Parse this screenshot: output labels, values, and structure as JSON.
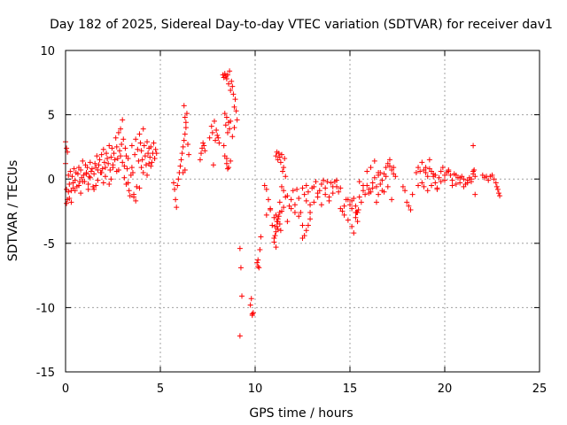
{
  "chart_data": {
    "type": "scatter",
    "title": "Day 182 of 2025, Sidereal Day-to-day VTEC variation (SDTVAR) for receiver dav1",
    "xlabel": "GPS time / hours",
    "ylabel": "SDTVAR / TECUs",
    "xlim": [
      0,
      25
    ],
    "ylim": [
      -15,
      10
    ],
    "xticks": [
      0,
      5,
      10,
      15,
      20,
      25
    ],
    "yticks": [
      -15,
      -10,
      -5,
      0,
      5,
      10
    ],
    "xtick_labels": [
      "0",
      "5",
      "10",
      "15",
      "20",
      "25"
    ],
    "ytick_labels": [
      "-15",
      "-10",
      "-5",
      "0",
      "5",
      "10"
    ],
    "grid": true,
    "marker": "+",
    "series_color": "#ff0000",
    "series": [
      {
        "name": "SDTVAR",
        "x": [
          0.0,
          0.05,
          0.1,
          0.15,
          0.2,
          0.25,
          0.3,
          0.35,
          0.4,
          0.45,
          0.5,
          0.55,
          0.6,
          0.65,
          0.7,
          0.75,
          0.8,
          0.85,
          0.9,
          0.95,
          1.0,
          1.05,
          1.1,
          1.15,
          1.2,
          1.25,
          1.3,
          1.35,
          1.4,
          1.45,
          1.5,
          1.55,
          1.6,
          1.65,
          1.7,
          1.75,
          1.8,
          1.85,
          1.9,
          1.95,
          2.0,
          2.05,
          2.1,
          2.15,
          2.2,
          2.25,
          2.3,
          2.35,
          2.4,
          2.45,
          2.5,
          2.55,
          2.6,
          2.65,
          2.7,
          2.75,
          2.8,
          2.85,
          2.9,
          2.95,
          3.0,
          3.05,
          3.1,
          3.15,
          3.2,
          3.25,
          3.3,
          3.35,
          3.4,
          3.45,
          3.5,
          3.55,
          3.6,
          3.65,
          3.7,
          3.75,
          3.8,
          3.85,
          3.9,
          3.95,
          4.0,
          4.05,
          4.1,
          4.15,
          4.2,
          4.25,
          4.3,
          4.35,
          4.4,
          4.45,
          4.5,
          4.55,
          4.6,
          4.65,
          4.7,
          4.75,
          4.8,
          0.0,
          0.05,
          0.1,
          0.2,
          0.3,
          0.5,
          0.7,
          0.9,
          1.1,
          1.3,
          1.5,
          1.7,
          1.9,
          2.1,
          2.3,
          2.5,
          2.7,
          2.9,
          3.1,
          3.3,
          3.5,
          3.7,
          3.9,
          4.1,
          4.3,
          4.5,
          4.7,
          0.05,
          0.15,
          0.4,
          0.8,
          1.2,
          1.6,
          2.0,
          2.4,
          2.8,
          3.0,
          3.2,
          3.6,
          4.0,
          4.4,
          5.7,
          5.75,
          5.8,
          5.85,
          5.9,
          5.95,
          6.0,
          6.05,
          6.1,
          6.15,
          6.2,
          6.25,
          6.3,
          6.35,
          6.4,
          6.45,
          6.5,
          6.25,
          6.3,
          6.35,
          6.2,
          6.3,
          7.1,
          7.15,
          7.2,
          7.25,
          7.3,
          7.35,
          7.6,
          7.7,
          7.75,
          7.8,
          7.85,
          7.9,
          7.95,
          8.0,
          8.05,
          8.1,
          8.3,
          8.35,
          8.4,
          8.45,
          8.5,
          8.55,
          8.6,
          8.65,
          8.7,
          8.75,
          8.8,
          8.85,
          8.9,
          8.95,
          9.0,
          9.05,
          8.4,
          8.45,
          8.5,
          8.55,
          8.6,
          8.65,
          8.7,
          8.8,
          8.9,
          8.35,
          8.4,
          8.5,
          8.6,
          8.7,
          8.5,
          8.55,
          9.2,
          9.25,
          9.3,
          9.2,
          9.75,
          9.8,
          9.85,
          9.9,
          9.85,
          10.1,
          10.15,
          10.2,
          10.25,
          10.3,
          10.15,
          10.5,
          10.6,
          10.7,
          10.8,
          10.9,
          11.0,
          11.05,
          11.1,
          11.15,
          11.2,
          11.3,
          11.4,
          11.5,
          11.6,
          11.7,
          11.8,
          11.9,
          12.0,
          12.1,
          12.2,
          12.3,
          12.4,
          12.5,
          12.6,
          12.7,
          12.8,
          12.9,
          13.0,
          13.1,
          13.2,
          13.3,
          13.4,
          13.5,
          13.6,
          13.7,
          13.8,
          13.9,
          14.0,
          14.1,
          14.2,
          14.3,
          14.4,
          14.5,
          14.6,
          14.7,
          14.8,
          14.9,
          15.0,
          15.1,
          15.2,
          15.3,
          15.4,
          15.5,
          15.6,
          15.7,
          15.8,
          15.9,
          16.0,
          16.1,
          16.2,
          16.3,
          16.4,
          16.5,
          16.6,
          16.7,
          16.8,
          16.9,
          17.0,
          17.1,
          17.2,
          17.3,
          17.4,
          10.6,
          10.8,
          11.0,
          11.1,
          11.2,
          11.3,
          11.5,
          11.7,
          11.9,
          12.1,
          12.3,
          12.5,
          12.7,
          12.9,
          13.1,
          13.3,
          13.5,
          13.7,
          13.9,
          14.1,
          14.3,
          14.5,
          14.7,
          14.9,
          15.1,
          15.3,
          15.5,
          15.7,
          15.9,
          16.1,
          16.3,
          16.5,
          16.7,
          16.9,
          17.1,
          17.3,
          11.1,
          11.15,
          11.2,
          11.25,
          11.3,
          11.35,
          11.4,
          11.45,
          11.5,
          11.55,
          11.6,
          11.0,
          11.05,
          11.1,
          11.15,
          11.2,
          11.25,
          11.3,
          11.35,
          11.4,
          12.5,
          12.6,
          12.7,
          12.8,
          12.9,
          15.1,
          15.2,
          15.3,
          15.35,
          15.4,
          15.45,
          16.0,
          16.2,
          16.4,
          16.5,
          16.6,
          16.8,
          17.0,
          17.2,
          17.8,
          17.9,
          18.0,
          18.1,
          18.2,
          18.3,
          18.5,
          18.6,
          18.7,
          18.8,
          18.9,
          19.0,
          19.1,
          19.2,
          19.3,
          19.4,
          19.5,
          19.6,
          19.7,
          19.8,
          19.9,
          20.0,
          20.1,
          20.2,
          20.3,
          20.4,
          20.5,
          20.6,
          20.7,
          20.8,
          20.9,
          21.0,
          21.1,
          21.2,
          21.3,
          21.4,
          21.5,
          21.55,
          21.6,
          18.6,
          18.8,
          19.0,
          19.2,
          19.4,
          19.6,
          19.8,
          20.0,
          20.2,
          20.4,
          20.6,
          20.8,
          21.0,
          21.2,
          21.4,
          18.9,
          19.1,
          19.3,
          19.5,
          21.5,
          21.5,
          21.6,
          22.0,
          22.1,
          22.2,
          22.3,
          22.4,
          22.5,
          22.6,
          22.7,
          22.75,
          22.8,
          22.85,
          22.9
        ],
        "y": [
          1.2,
          -0.8,
          -1.6,
          0.3,
          -0.4,
          0.6,
          -0.9,
          0.2,
          -0.3,
          0.8,
          -0.1,
          0.5,
          -0.6,
          0.4,
          0.9,
          -0.2,
          0.7,
          0.1,
          1.4,
          0.3,
          -0.2,
          1.1,
          0.5,
          0.9,
          -0.4,
          0.2,
          1.3,
          0.6,
          0.8,
          -0.6,
          0.4,
          1.2,
          0.9,
          1.8,
          0.7,
          1.1,
          1.5,
          0.5,
          1.9,
          0.8,
          2.3,
          1.3,
          0.9,
          2.0,
          1.6,
          1.2,
          2.6,
          0.7,
          1.7,
          2.4,
          1.1,
          2.0,
          1.5,
          3.2,
          2.5,
          1.6,
          3.6,
          2.2,
          3.9,
          2.7,
          4.6,
          3.1,
          1.0,
          2.4,
          -0.4,
          0.8,
          1.6,
          -0.9,
          -1.3,
          0.3,
          2.6,
          0.5,
          -1.2,
          1.9,
          3.1,
          -0.6,
          2.3,
          1.4,
          3.5,
          2.8,
          2.2,
          1.5,
          3.9,
          2.6,
          1.8,
          1.1,
          2.9,
          2.0,
          2.4,
          1.7,
          2.5,
          1.3,
          2.0,
          2.8,
          1.6,
          2.3,
          2.0,
          2.9,
          2.4,
          2.1,
          -1.5,
          -1.8,
          -0.9,
          -0.5,
          -0.2,
          0.4,
          0.1,
          -0.8,
          -0.1,
          0.5,
          0.2,
          -0.4,
          0.9,
          0.6,
          1.8,
          0.1,
          -0.3,
          0.9,
          -1.7,
          -0.7,
          0.5,
          0.3,
          1.0,
          1.6,
          -1.9,
          -1.0,
          -0.7,
          -1.1,
          -0.8,
          -0.5,
          -0.3,
          0.0,
          0.7,
          1.3,
          1.8,
          -1.4,
          0.9,
          1.2,
          -0.3,
          -0.8,
          -1.6,
          -2.2,
          -0.5,
          0.0,
          0.5,
          1.0,
          1.5,
          2.0,
          2.5,
          3.0,
          3.5,
          4.0,
          5.1,
          2.7,
          1.9,
          5.7,
          4.8,
          4.4,
          0.5,
          0.7,
          1.5,
          2.0,
          2.4,
          2.8,
          2.6,
          2.2,
          3.2,
          4.1,
          3.6,
          1.1,
          4.5,
          3.0,
          3.8,
          3.4,
          3.2,
          2.8,
          8.1,
          7.9,
          8.2,
          8.0,
          7.8,
          8.1,
          7.4,
          8.4,
          6.9,
          7.6,
          7.2,
          6.6,
          5.6,
          6.2,
          5.3,
          4.6,
          5.1,
          4.2,
          4.8,
          3.6,
          4.4,
          3.9,
          4.5,
          3.3,
          4.0,
          2.6,
          1.8,
          1.2,
          0.9,
          1.4,
          1.6,
          0.8,
          -5.4,
          -6.9,
          -9.1,
          -12.2,
          -9.8,
          -9.3,
          -10.6,
          -10.4,
          -10.5,
          -6.5,
          -6.8,
          -6.9,
          -5.5,
          -4.5,
          -6.3,
          -0.5,
          -0.8,
          -1.6,
          -2.3,
          -3.6,
          -3.0,
          -3.7,
          -2.8,
          -3.3,
          -3.9,
          -1.8,
          -0.6,
          -0.9,
          -1.4,
          -1.3,
          -2.1,
          -1.6,
          -0.9,
          -2.0,
          -0.8,
          -1.5,
          -2.6,
          -0.7,
          -1.2,
          -0.5,
          -1.0,
          -2.0,
          -0.7,
          -0.6,
          -0.2,
          -1.4,
          -0.9,
          -0.4,
          -0.1,
          -0.7,
          -0.2,
          -1.7,
          -0.3,
          -0.6,
          -0.2,
          -0.1,
          -1.0,
          -0.7,
          -2.5,
          -2.8,
          -1.6,
          -3.2,
          -2.0,
          -2.3,
          -1.5,
          -2.1,
          -2.6,
          -1.4,
          -1.8,
          -0.9,
          -1.2,
          -0.5,
          -0.8,
          -1.0,
          -0.3,
          0.1,
          -0.6,
          0.3,
          0.5,
          -0.1,
          0.4,
          0.9,
          1.2,
          1.0,
          0.7,
          0.4,
          0.2,
          -2.8,
          -2.4,
          -4.6,
          -5.3,
          -3.1,
          -2.6,
          -2.2,
          -3.3,
          -2.3,
          -2.6,
          -2.9,
          -3.6,
          -1.7,
          -2.6,
          -1.8,
          -1.1,
          -2.0,
          -1.2,
          -1.4,
          -1.1,
          -0.6,
          -2.3,
          -2.1,
          -1.6,
          -1.7,
          -2.6,
          -0.2,
          -0.5,
          0.6,
          0.9,
          1.4,
          0.5,
          -0.9,
          0.2,
          1.5,
          0.9,
          1.8,
          2.1,
          1.5,
          2.0,
          1.7,
          1.3,
          1.9,
          0.6,
          0.9,
          1.6,
          0.2,
          -4.9,
          -4.4,
          -4.1,
          -3.7,
          -3.3,
          -2.9,
          -3.5,
          -4.0,
          -2.5,
          -4.6,
          -4.4,
          -4.0,
          -3.6,
          -3.1,
          -3.7,
          -4.2,
          -3.0,
          -2.6,
          -3.3,
          -2.4,
          -1.1,
          -0.7,
          -1.8,
          -1.2,
          -0.4,
          -1.0,
          -0.6,
          -1.6,
          -0.6,
          -0.9,
          -1.8,
          -2.1,
          -2.4,
          -1.2,
          0.5,
          0.9,
          0.6,
          1.3,
          0.7,
          0.5,
          0.2,
          0.8,
          0.6,
          0.4,
          -0.3,
          -0.7,
          0.1,
          0.6,
          0.9,
          0.3,
          0.5,
          0.7,
          0.3,
          -0.1,
          0.4,
          0.3,
          0.1,
          -0.3,
          0.2,
          0.0,
          -0.4,
          -0.1,
          0.1,
          -0.2,
          0.4,
          0.7,
          0.2,
          -0.5,
          -0.3,
          0.9,
          1.5,
          0.2,
          -0.8,
          -0.2,
          -0.1,
          0.6,
          -0.5,
          -0.4,
          0.1,
          -0.6,
          -0.3,
          0.0,
          -0.6,
          -0.9,
          -0.5,
          0.3,
          2.6,
          0.6,
          -1.2,
          0.3,
          0.1,
          0.2,
          -0.1,
          0.2,
          0.3,
          0.0,
          -0.3,
          -0.6,
          -0.8,
          -1.1,
          -1.3
        ]
      }
    ]
  }
}
